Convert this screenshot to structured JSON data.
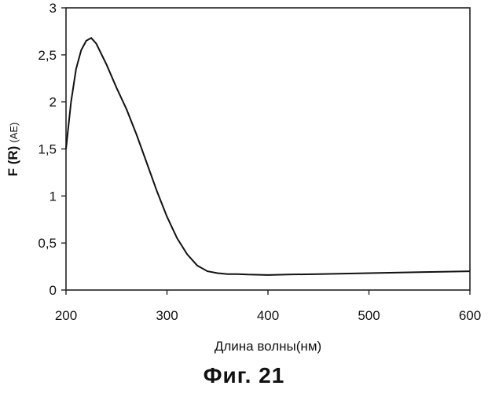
{
  "chart_data": {
    "type": "line",
    "xlabel": "Длина волны(нм)",
    "ylabel": "F (R)",
    "ylabel_unit": "(AE)",
    "xlim": [
      200,
      600
    ],
    "ylim": [
      0,
      3
    ],
    "xticks": [
      "200",
      "300",
      "400",
      "500",
      "600"
    ],
    "yticks": [
      "0",
      "0,5",
      "1",
      "1,5",
      "2",
      "2,5",
      "3"
    ],
    "grid": false,
    "series": [
      {
        "x": [
          200,
          205,
          210,
          215,
          220,
          225,
          230,
          240,
          250,
          260,
          270,
          280,
          290,
          300,
          310,
          320,
          330,
          340,
          350,
          360,
          370,
          380,
          400,
          420,
          450,
          500,
          550,
          600
        ],
        "values": [
          1.5,
          2.0,
          2.35,
          2.55,
          2.65,
          2.68,
          2.62,
          2.4,
          2.15,
          1.92,
          1.65,
          1.35,
          1.05,
          0.78,
          0.55,
          0.38,
          0.26,
          0.2,
          0.18,
          0.17,
          0.17,
          0.165,
          0.16,
          0.165,
          0.17,
          0.18,
          0.19,
          0.2
        ]
      }
    ]
  },
  "caption": "Фиг. 21"
}
